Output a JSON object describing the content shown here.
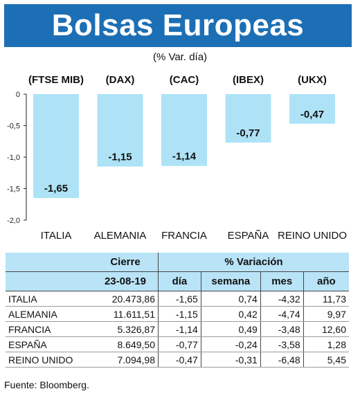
{
  "title": "Bolsas Europeas",
  "chart_data": {
    "type": "bar",
    "subtitle": "(% Var. día)",
    "categories": [
      "ITALIA",
      "ALEMANIA",
      "FRANCIA",
      "ESPAÑA",
      "REINO UNIDO"
    ],
    "index_labels": [
      "(FTSE MIB)",
      "(DAX)",
      "(CAC)",
      "(IBEX)",
      "(UKX)"
    ],
    "values": [
      -1.65,
      -1.15,
      -1.14,
      -0.77,
      -0.47
    ],
    "value_labels": [
      "-1,65",
      "-1,15",
      "-1,14",
      "-0,77",
      "-0,47"
    ],
    "yticks": [
      0,
      -0.5,
      -1.0,
      -1.5,
      -2.0
    ],
    "ytick_labels": [
      "0",
      "-0,5",
      "-1,0",
      "-1,5",
      "-2,0"
    ],
    "ylim": [
      -2.0,
      0
    ],
    "grid": false,
    "bar_color": "#aee3f7"
  },
  "table": {
    "header_cierre": "Cierre",
    "header_variacion": "% Variación",
    "header_date": "23-08-19",
    "col_dia": "día",
    "col_semana": "semana",
    "col_mes": "mes",
    "col_anio": "año",
    "header_bg": "#b9e3f6",
    "rows": [
      {
        "name": "ITALIA",
        "cierre": "20.473,86",
        "dia": "-1,65",
        "semana": "0,74",
        "mes": "-4,32",
        "anio": "11,73"
      },
      {
        "name": "ALEMANIA",
        "cierre": "11.611,51",
        "dia": "-1,15",
        "semana": "0,42",
        "mes": "-4,74",
        "anio": "9,97"
      },
      {
        "name": "FRANCIA",
        "cierre": "5.326,87",
        "dia": "-1,14",
        "semana": "0,49",
        "mes": "-3,48",
        "anio": "12,60"
      },
      {
        "name": "ESPAÑA",
        "cierre": "8.649,50",
        "dia": "-0,77",
        "semana": "-0,24",
        "mes": "-3,58",
        "anio": "1,28"
      },
      {
        "name": "REINO UNIDO",
        "cierre": "7.094,98",
        "dia": "-0,47",
        "semana": "-0,31",
        "mes": "-6,48",
        "anio": "5,45"
      }
    ]
  },
  "source": "Fuente: Bloomberg.",
  "colors": {
    "title_bar": "#1c6fb4",
    "title_text": "#ffffff"
  }
}
